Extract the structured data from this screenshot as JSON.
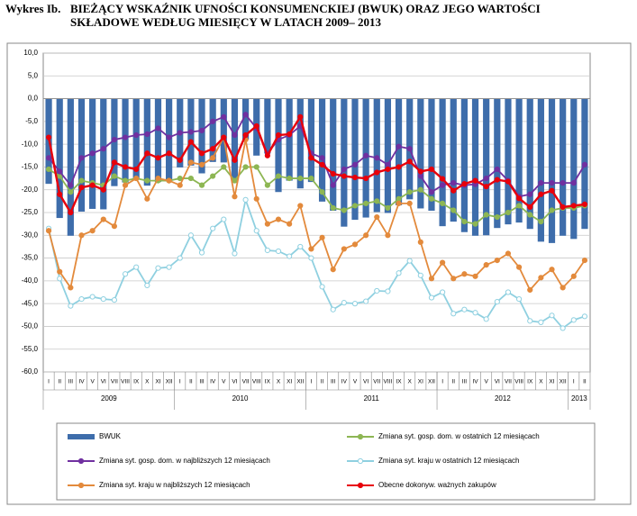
{
  "chart_data": {
    "type": "bar",
    "figure_label": "Wykres Ib.",
    "title": [
      "BIEŻĄCY WSKAŹNIK UFNOŚCI KONSUMENCKIEJ (BWUK) ORAZ JEGO WARTOŚCI",
      "SKŁADOWE WEDŁUG MIESIĘCY W LATACH 2009– 2013"
    ],
    "categories": [
      "I",
      "II",
      "III",
      "IV",
      "V",
      "VI",
      "VII",
      "VIII",
      "IX",
      "X",
      "XI",
      "XII",
      "I",
      "II",
      "III",
      "IV",
      "V",
      "VI",
      "VII",
      "VIII",
      "IX",
      "X",
      "XI",
      "XII",
      "I",
      "II",
      "III",
      "IV",
      "V",
      "VI",
      "VII",
      "VIII",
      "IX",
      "X",
      "XI",
      "XII",
      "I",
      "II",
      "III",
      "IV",
      "V",
      "VI",
      "VII",
      "VIII",
      "IX",
      "X",
      "XI",
      "XII",
      "I",
      "II"
    ],
    "years": [
      "2009",
      "2010",
      "2011",
      "2012",
      "2013"
    ],
    "ylim": [
      -60,
      10
    ],
    "yticks": [
      {
        "value": 10,
        "label": "10,0"
      },
      {
        "value": 5,
        "label": "5,0"
      },
      {
        "value": 0,
        "label": "0,0"
      },
      {
        "value": -5,
        "label": "-5,0"
      },
      {
        "value": -10,
        "label": "-10,0"
      },
      {
        "value": -15,
        "label": "-15,0"
      },
      {
        "value": -20,
        "label": "-20,0"
      },
      {
        "value": -25,
        "label": "-25,0"
      },
      {
        "value": -30,
        "label": "-30,0"
      },
      {
        "value": -35,
        "label": "-35,0"
      },
      {
        "value": -40,
        "label": "-40,0"
      },
      {
        "value": -45,
        "label": "-45,0"
      },
      {
        "value": -50,
        "label": "-50,0"
      },
      {
        "value": -55,
        "label": "-55,0"
      },
      {
        "value": -60,
        "label": "-60,0"
      }
    ],
    "grid": true,
    "series": [
      {
        "name": "BWUK",
        "type": "bar",
        "color": "#3e6dab",
        "values": [
          -18.7,
          -26.2,
          -30.1,
          -24.8,
          -24.2,
          -24.3,
          -19.2,
          -18.4,
          -17.7,
          -19.1,
          -18.3,
          -18.1,
          -15.1,
          -14.7,
          -16.4,
          -13.9,
          -14.0,
          -18.5,
          -9.0,
          -12.5,
          -12.0,
          -20.5,
          -18.0,
          -19.7,
          -18.3,
          -22.6,
          -24.6,
          -28.1,
          -26.6,
          -26.1,
          -24.9,
          -25.1,
          -23.4,
          -22.1,
          -24.1,
          -24.6,
          -28.0,
          -27.0,
          -29.3,
          -30.1,
          -30.0,
          -28.4,
          -27.6,
          -27.2,
          -28.6,
          -31.4,
          -31.7,
          -30.1,
          -30.8,
          -28.6
        ]
      },
      {
        "name": "Zmiana syt. gosp. dom. w ostatnich 12 miesiącach",
        "type": "line",
        "color": "#8db653",
        "values": [
          -15.5,
          -17,
          -20.5,
          -18,
          -18.5,
          -19,
          -17,
          -18,
          -17.5,
          -18,
          -18,
          -18,
          -17.5,
          -17.5,
          -19,
          -17,
          -15,
          -18,
          -15,
          -15,
          -19,
          -17,
          -17.5,
          -17.5,
          -17.5,
          -20.5,
          -24,
          -24.5,
          -23.5,
          -23,
          -22.5,
          -24,
          -22,
          -20.5,
          -20,
          -22,
          -23,
          -24.5,
          -27,
          -27.5,
          -25.5,
          -26,
          -25,
          -23.5,
          -25.5,
          -27,
          -24.5,
          -24,
          -24,
          -23.5
        ]
      },
      {
        "name": "Zmiana syt. gosp. dom. w najbliższych 12 miesiącach",
        "type": "line",
        "color": "#7030a0",
        "values": [
          -13,
          -16,
          -19,
          -13,
          -12,
          -11,
          -9,
          -8.5,
          -8,
          -7.8,
          -6.5,
          -8.5,
          -7.5,
          -7.3,
          -7,
          -5,
          -4,
          -8,
          -3.5,
          -6.5,
          -12,
          -9,
          -8,
          -6,
          -12,
          -13,
          -19,
          -15.5,
          -14.5,
          -12.5,
          -13,
          -14.5,
          -10.5,
          -11,
          -17,
          -20.5,
          -19,
          -18.5,
          -19,
          -18.8,
          -17.5,
          -15.5,
          -18,
          -21.5,
          -21,
          -18.5,
          -18.5,
          -18.5,
          -18.5,
          -14.5
        ]
      },
      {
        "name": "Zmiana syt. kraju w ostatnich 12 miesiącach",
        "type": "line",
        "color": "#8fd0e0",
        "marker_fill": "#ffffff",
        "values": [
          -28.5,
          -39.5,
          -45.5,
          -44,
          -43.5,
          -44,
          -44.2,
          -38.5,
          -37,
          -41,
          -37.2,
          -37,
          -35,
          -30,
          -33.8,
          -28.5,
          -26.5,
          -34,
          -22.2,
          -29,
          -33.3,
          -33.5,
          -34.6,
          -32.5,
          -35,
          -41.3,
          -46.3,
          -44.8,
          -45,
          -44.5,
          -42.2,
          -42.3,
          -38.3,
          -35.6,
          -38.8,
          -43.7,
          -42.5,
          -47.2,
          -46.3,
          -47,
          -48.4,
          -44.6,
          -42.5,
          -44,
          -48.8,
          -49.1,
          -47.6,
          -50.4,
          -48.6,
          -47.8
        ]
      },
      {
        "name": "Zmiana syt. kraju w najbliższych 12 miesiącach",
        "type": "line",
        "color": "#e38a3c",
        "values": [
          -29,
          -38,
          -41.5,
          -30,
          -29,
          -26.5,
          -28,
          -19,
          -17.5,
          -22,
          -17.5,
          -18,
          -19,
          -14,
          -14.5,
          -13,
          -8.5,
          -21.5,
          -9,
          -22,
          -27.5,
          -26.5,
          -27.5,
          -23.5,
          -33,
          -30.5,
          -37.5,
          -33,
          -32,
          -30,
          -26,
          -30,
          -23,
          -23,
          -31.5,
          -39.5,
          -36,
          -39.5,
          -38.5,
          -39,
          -36.5,
          -35.5,
          -34,
          -37,
          -42,
          -39.3,
          -37.5,
          -41.5,
          -39,
          -35.5
        ]
      },
      {
        "name": "Obecne dokonyw. ważnych zakupów",
        "type": "line",
        "color": "#e8000b",
        "values": [
          -8.5,
          -21,
          -25,
          -19.5,
          -19,
          -20,
          -14,
          -15,
          -15.5,
          -12,
          -13,
          -12,
          -13.5,
          -9.5,
          -12,
          -11,
          -8.5,
          -13.5,
          -8,
          -6,
          -12.5,
          -8,
          -7.8,
          -4,
          -13,
          -14.5,
          -16.5,
          -17,
          -17.3,
          -17.5,
          -16.2,
          -15.5,
          -15,
          -13.8,
          -16,
          -15.5,
          -17.6,
          -20.2,
          -18.7,
          -18,
          -19.3,
          -17.8,
          -18.2,
          -21.9,
          -23.8,
          -21,
          -20.2,
          -23.8,
          -23.5,
          -23.2
        ]
      }
    ]
  }
}
